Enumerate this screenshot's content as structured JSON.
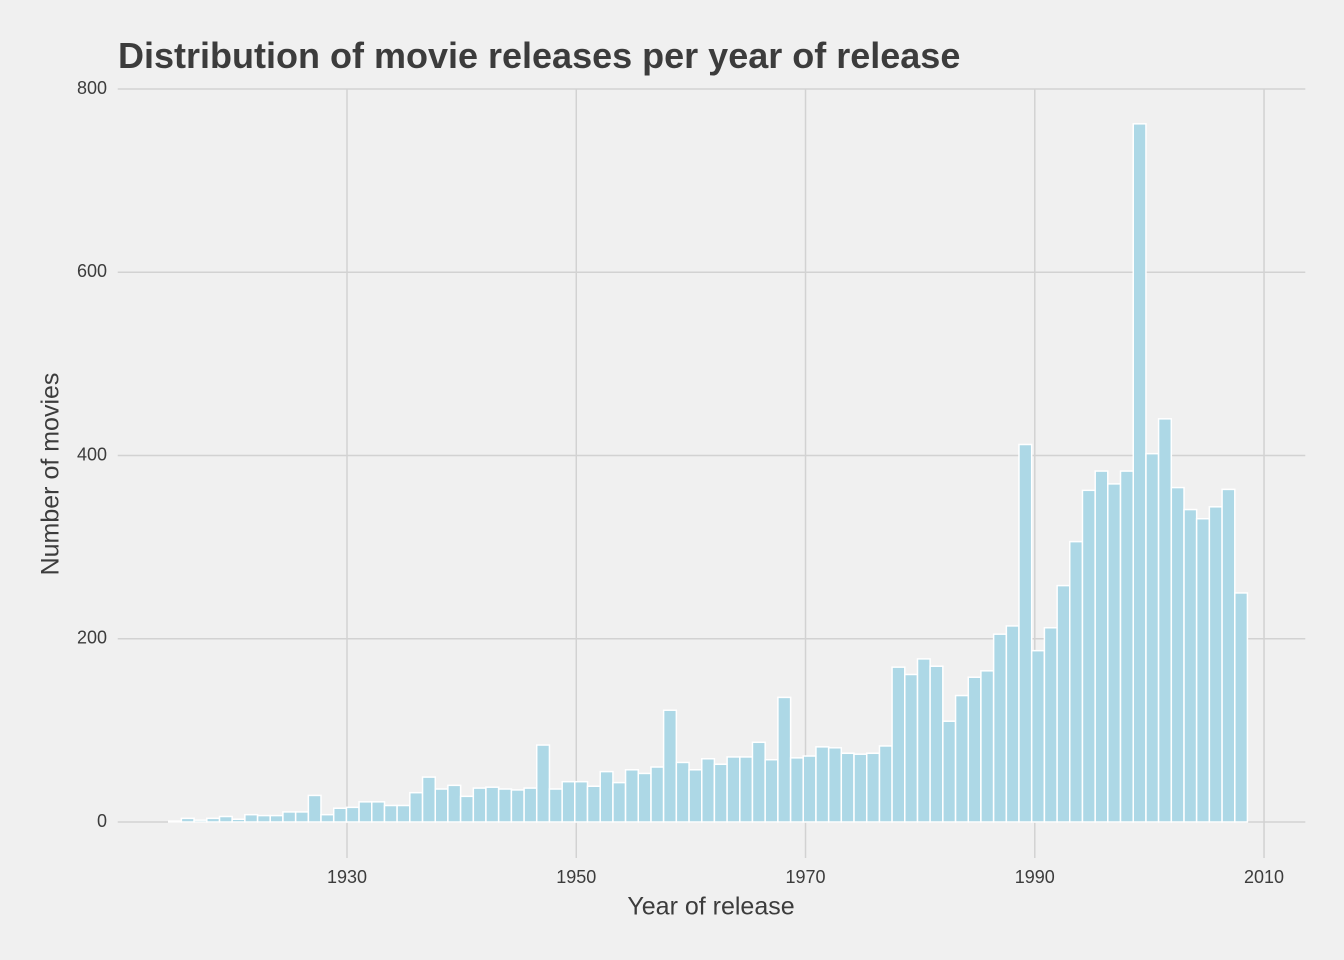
{
  "chart_data": {
    "type": "histogram",
    "title": "Distribution of movie releases per year of release",
    "x_label": "Year of release",
    "y_label": "Number of movies",
    "bins": [
      1914.45,
      1915.55,
      1916.66,
      1917.77,
      1918.88,
      1919.98,
      1921.09,
      1922.2,
      1923.3,
      1924.41,
      1925.52,
      1926.63,
      1927.73,
      1928.84,
      1929.95,
      1931.05,
      1932.16,
      1933.27,
      1934.37,
      1935.48,
      1936.59,
      1937.7,
      1938.8,
      1939.91,
      1941.02,
      1942.12,
      1943.23,
      1944.34,
      1945.45,
      1946.55,
      1947.66,
      1948.77,
      1949.87,
      1950.98,
      1952.09,
      1953.2,
      1954.3,
      1955.41,
      1956.52,
      1957.62,
      1958.73,
      1959.84,
      1960.95,
      1962.05,
      1963.16,
      1964.27,
      1965.37,
      1966.48,
      1967.59,
      1968.7,
      1969.8,
      1970.91,
      1972.02,
      1973.12,
      1974.23,
      1975.34,
      1976.45,
      1977.55,
      1978.66,
      1979.77,
      1980.87,
      1981.98,
      1983.09,
      1984.2,
      1985.3,
      1986.41,
      1987.52,
      1988.62,
      1989.73,
      1990.84,
      1991.95,
      1993.05,
      1994.16,
      1995.27,
      1996.37,
      1997.48,
      1998.59,
      1999.7,
      2000.8,
      2001.91,
      2003.02,
      2004.12,
      2005.23,
      2006.34,
      2007.45,
      2008.55
    ],
    "values": [
      1,
      4,
      2,
      4,
      6,
      3,
      8,
      7,
      7,
      11,
      11,
      29,
      8,
      15,
      16,
      22,
      22,
      18,
      18,
      32,
      49,
      36,
      40,
      28,
      37,
      38,
      36,
      35,
      37,
      84,
      36,
      44,
      44,
      39,
      55,
      43,
      57,
      53,
      60,
      122,
      65,
      57,
      69,
      63,
      71,
      71,
      87,
      68,
      136,
      70,
      72,
      82,
      81,
      75,
      74,
      75,
      83,
      169,
      161,
      178,
      170,
      110,
      138,
      158,
      165,
      205,
      214,
      412,
      187,
      212,
      258,
      306,
      362,
      383,
      369,
      383,
      762,
      402,
      440,
      365,
      341,
      331,
      344,
      363,
      250
    ],
    "color": "#add8e6",
    "xlim": [
      1910,
      2013.6
    ],
    "xticks": [
      1930,
      1950,
      1970,
      1990,
      2010
    ],
    "ylim": [
      0,
      800
    ],
    "yticks": [
      0,
      200,
      400,
      600,
      800
    ],
    "grid": true
  }
}
